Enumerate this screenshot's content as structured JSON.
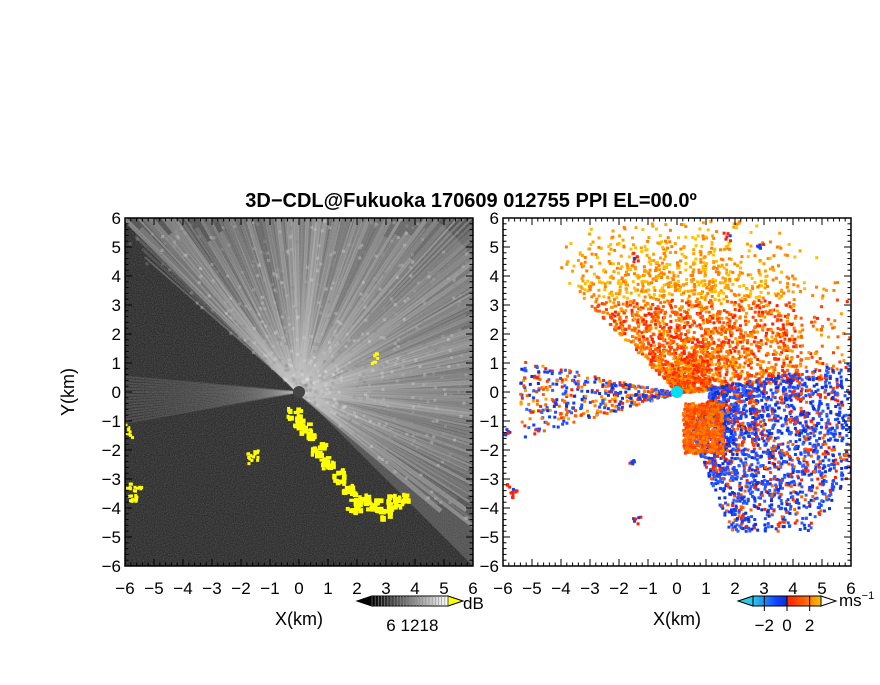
{
  "figure": {
    "title": "3D−CDL@Fukuoka 170609 012755 PPI EL=00.0º"
  },
  "chart_data": [
    {
      "type": "heatmap",
      "name": "reflectivity-ppi",
      "xlabel": "X(km)",
      "ylabel": "Y(km)",
      "xlim": [
        -6,
        6
      ],
      "ylim": [
        -6,
        6
      ],
      "x_ticks": [
        "−6",
        "−5",
        "−4",
        "−3",
        "−2",
        "−1",
        "0",
        "1",
        "2",
        "3",
        "4",
        "5",
        "6"
      ],
      "y_ticks": [
        "−6",
        "−5",
        "−4",
        "−3",
        "−2",
        "−1",
        "0",
        "1",
        "2",
        "3",
        "4",
        "5",
        "6"
      ],
      "colorbar": {
        "unit": "dB",
        "ticks": [
          "6",
          "12",
          "18"
        ],
        "tick_values": [
          6,
          12,
          18
        ],
        "range": [
          0,
          24
        ],
        "colors": [
          "#000000",
          "#ffffff"
        ]
      },
      "highlight_color": "#ffff00"
    },
    {
      "type": "heatmap",
      "name": "doppler-velocity-ppi",
      "xlabel": "X(km)",
      "ylabel": "",
      "xlim": [
        -6,
        6
      ],
      "ylim": [
        -6,
        6
      ],
      "x_ticks": [
        "−6",
        "−5",
        "−4",
        "−3",
        "−2",
        "−1",
        "0",
        "1",
        "2",
        "3",
        "4",
        "5",
        "6"
      ],
      "y_ticks": [
        "−6",
        "−5",
        "−4",
        "−3",
        "−2",
        "−1",
        "0",
        "1",
        "2",
        "3",
        "4",
        "5",
        "6"
      ],
      "colorbar": {
        "unit": "ms",
        "unit_exponent": "−1",
        "ticks": [
          "−2",
          "0",
          "2"
        ],
        "tick_values": [
          -2,
          0,
          2
        ],
        "range": [
          -3,
          3
        ],
        "colors": [
          "#30c8e8",
          "#1040ff",
          "#ff2000",
          "#ffc000"
        ]
      },
      "radar_marker_color": "#00e0f0"
    }
  ]
}
